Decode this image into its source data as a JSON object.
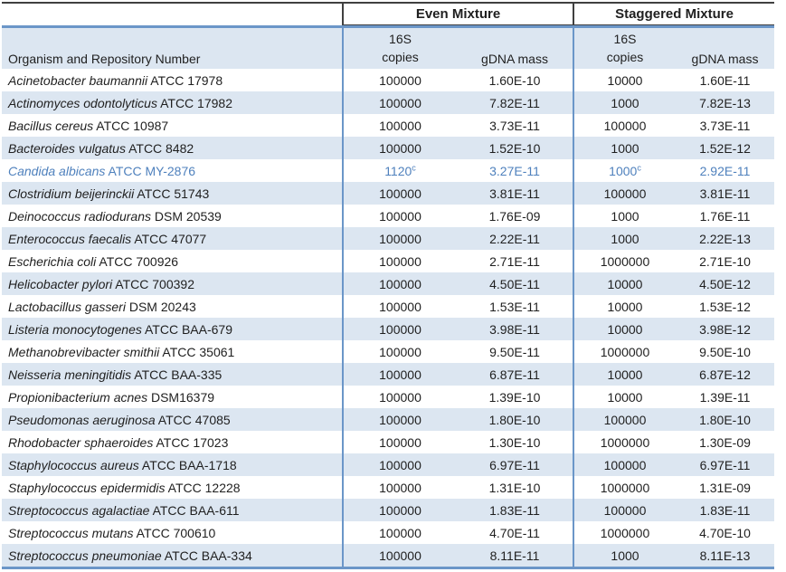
{
  "table": {
    "columns": {
      "organism_header": "Organism and Repository Number",
      "group_even": "Even Mixture",
      "group_staggered": "Staggered Mixture",
      "sub_16s_line1": "16S",
      "sub_16s_line2": "copies",
      "sub_gdna": "gDNA mass"
    },
    "colors": {
      "stripe_fill": "#dce6f1",
      "accent_border": "#6b96c8",
      "dark_border": "#404040",
      "highlight_text": "#4f81bd"
    },
    "rows": [
      {
        "name": "Acinetobacter baumannii",
        "repo": "ATCC 17978",
        "even_copies": "100000",
        "even_copies_sup": "",
        "even_gdna": "1.60E-10",
        "stag_copies": "10000",
        "stag_copies_sup": "",
        "stag_gdna": "1.60E-11",
        "highlight": false
      },
      {
        "name": "Actinomyces odontolyticus",
        "repo": "ATCC 17982",
        "even_copies": "100000",
        "even_copies_sup": "",
        "even_gdna": "7.82E-11",
        "stag_copies": "1000",
        "stag_copies_sup": "",
        "stag_gdna": "7.82E-13",
        "highlight": false
      },
      {
        "name": "Bacillus cereus",
        "repo": "ATCC 10987",
        "even_copies": "100000",
        "even_copies_sup": "",
        "even_gdna": "3.73E-11",
        "stag_copies": "100000",
        "stag_copies_sup": "",
        "stag_gdna": "3.73E-11",
        "highlight": false
      },
      {
        "name": "Bacteroides vulgatus",
        "repo": "ATCC 8482",
        "even_copies": "100000",
        "even_copies_sup": "",
        "even_gdna": "1.52E-10",
        "stag_copies": "1000",
        "stag_copies_sup": "",
        "stag_gdna": "1.52E-12",
        "highlight": false
      },
      {
        "name": "Candida albicans",
        "repo": "ATCC MY-2876",
        "even_copies": "1120",
        "even_copies_sup": "c",
        "even_gdna": "3.27E-11",
        "stag_copies": "1000",
        "stag_copies_sup": "c",
        "stag_gdna": "2.92E-11",
        "highlight": true
      },
      {
        "name": "Clostridium beijerinckii",
        "repo": "ATCC 51743",
        "even_copies": "100000",
        "even_copies_sup": "",
        "even_gdna": "3.81E-11",
        "stag_copies": "100000",
        "stag_copies_sup": "",
        "stag_gdna": "3.81E-11",
        "highlight": false
      },
      {
        "name": "Deinococcus radiodurans",
        "repo": "DSM 20539",
        "even_copies": "100000",
        "even_copies_sup": "",
        "even_gdna": "1.76E-09",
        "stag_copies": "1000",
        "stag_copies_sup": "",
        "stag_gdna": "1.76E-11",
        "highlight": false
      },
      {
        "name": "Enterococcus faecalis",
        "repo": "ATCC 47077",
        "even_copies": "100000",
        "even_copies_sup": "",
        "even_gdna": "2.22E-11",
        "stag_copies": "1000",
        "stag_copies_sup": "",
        "stag_gdna": "2.22E-13",
        "highlight": false
      },
      {
        "name": "Escherichia coli",
        "repo": "ATCC 700926",
        "even_copies": "100000",
        "even_copies_sup": "",
        "even_gdna": "2.71E-11",
        "stag_copies": "1000000",
        "stag_copies_sup": "",
        "stag_gdna": "2.71E-10",
        "highlight": false
      },
      {
        "name": "Helicobacter pylori",
        "repo": "ATCC 700392",
        "even_copies": "100000",
        "even_copies_sup": "",
        "even_gdna": "4.50E-11",
        "stag_copies": "10000",
        "stag_copies_sup": "",
        "stag_gdna": "4.50E-12",
        "highlight": false
      },
      {
        "name": "Lactobacillus gasseri",
        "repo": "DSM 20243",
        "even_copies": "100000",
        "even_copies_sup": "",
        "even_gdna": "1.53E-11",
        "stag_copies": "10000",
        "stag_copies_sup": "",
        "stag_gdna": "1.53E-12",
        "highlight": false
      },
      {
        "name": "Listeria monocytogenes",
        "repo": "ATCC BAA-679",
        "even_copies": "100000",
        "even_copies_sup": "",
        "even_gdna": "3.98E-11",
        "stag_copies": "10000",
        "stag_copies_sup": "",
        "stag_gdna": "3.98E-12",
        "highlight": false
      },
      {
        "name": "Methanobrevibacter smithii",
        "repo": "ATCC 35061",
        "even_copies": "100000",
        "even_copies_sup": "",
        "even_gdna": "9.50E-11",
        "stag_copies": "1000000",
        "stag_copies_sup": "",
        "stag_gdna": "9.50E-10",
        "highlight": false
      },
      {
        "name": "Neisseria meningitidis",
        "repo": "ATCC BAA-335",
        "even_copies": "100000",
        "even_copies_sup": "",
        "even_gdna": "6.87E-11",
        "stag_copies": "10000",
        "stag_copies_sup": "",
        "stag_gdna": "6.87E-12",
        "highlight": false
      },
      {
        "name": "Propionibacterium acnes",
        "repo": "DSM16379",
        "even_copies": "100000",
        "even_copies_sup": "",
        "even_gdna": "1.39E-10",
        "stag_copies": "10000",
        "stag_copies_sup": "",
        "stag_gdna": "1.39E-11",
        "highlight": false
      },
      {
        "name": "Pseudomonas aeruginosa",
        "repo": "ATCC 47085",
        "even_copies": "100000",
        "even_copies_sup": "",
        "even_gdna": "1.80E-10",
        "stag_copies": "100000",
        "stag_copies_sup": "",
        "stag_gdna": "1.80E-10",
        "highlight": false
      },
      {
        "name": "Rhodobacter sphaeroides",
        "repo": "ATCC 17023",
        "even_copies": "100000",
        "even_copies_sup": "",
        "even_gdna": "1.30E-10",
        "stag_copies": "1000000",
        "stag_copies_sup": "",
        "stag_gdna": "1.30E-09",
        "highlight": false
      },
      {
        "name": "Staphylococcus aureus",
        "repo": "ATCC BAA-1718",
        "even_copies": "100000",
        "even_copies_sup": "",
        "even_gdna": "6.97E-11",
        "stag_copies": "100000",
        "stag_copies_sup": "",
        "stag_gdna": "6.97E-11",
        "highlight": false
      },
      {
        "name": "Staphylococcus epidermidis",
        "repo": "ATCC 12228",
        "even_copies": "100000",
        "even_copies_sup": "",
        "even_gdna": "1.31E-10",
        "stag_copies": "1000000",
        "stag_copies_sup": "",
        "stag_gdna": "1.31E-09",
        "highlight": false
      },
      {
        "name": "Streptococcus agalactiae",
        "repo": "ATCC BAA-611",
        "even_copies": "100000",
        "even_copies_sup": "",
        "even_gdna": "1.83E-11",
        "stag_copies": "100000",
        "stag_copies_sup": "",
        "stag_gdna": "1.83E-11",
        "highlight": false
      },
      {
        "name": "Streptococcus mutans",
        "repo": "ATCC 700610",
        "even_copies": "100000",
        "even_copies_sup": "",
        "even_gdna": "4.70E-11",
        "stag_copies": "1000000",
        "stag_copies_sup": "",
        "stag_gdna": "4.70E-10",
        "highlight": false
      },
      {
        "name": "Streptococcus pneumoniae",
        "repo": "ATCC BAA-334",
        "even_copies": "100000",
        "even_copies_sup": "",
        "even_gdna": "8.11E-11",
        "stag_copies": "1000",
        "stag_copies_sup": "",
        "stag_gdna": "8.11E-13",
        "highlight": false
      }
    ]
  }
}
